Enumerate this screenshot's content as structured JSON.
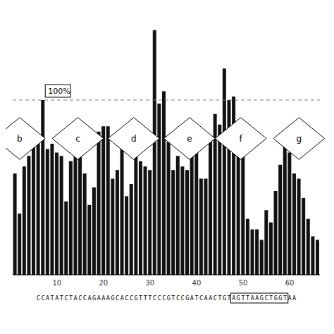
{
  "chart_data": {
    "type": "bar",
    "categories": [
      null,
      null,
      null,
      null,
      null,
      null,
      null,
      null,
      null,
      "10",
      null,
      null,
      null,
      null,
      null,
      null,
      null,
      null,
      null,
      "20",
      null,
      null,
      null,
      null,
      null,
      null,
      null,
      null,
      null,
      "30",
      null,
      null,
      null,
      null,
      null,
      null,
      null,
      null,
      null,
      "40",
      null,
      null,
      null,
      null,
      null,
      null,
      null,
      null,
      null,
      "50",
      null,
      null,
      null,
      null,
      null,
      null,
      null,
      null,
      null,
      "60",
      null,
      null,
      null,
      null,
      null,
      null
    ],
    "values": [
      58,
      35,
      62,
      68,
      75,
      80,
      100,
      72,
      75,
      70,
      68,
      42,
      65,
      72,
      70,
      58,
      40,
      50,
      82,
      85,
      85,
      55,
      60,
      72,
      45,
      52,
      72,
      65,
      62,
      60,
      140,
      98,
      105,
      76,
      60,
      68,
      62,
      60,
      68,
      80,
      55,
      55,
      78,
      92,
      86,
      118,
      100,
      102,
      82,
      68,
      32,
      26,
      26,
      20,
      37,
      30,
      48,
      63,
      83,
      70,
      58,
      55,
      44,
      32,
      22,
      20
    ],
    "color": "#111111",
    "ylim": [
      0,
      150
    ],
    "tick_labels": "x",
    "grid": false,
    "reference_line": {
      "y": 100,
      "label": "100%"
    },
    "annotations": [
      "b",
      "c",
      "d",
      "e",
      "f",
      "g"
    ],
    "sequence": [
      "CCATATCTACCAGAAAGCACCGTTTCCCGTCCGATCAACTGT",
      "AGTTAAGCTGGT",
      "AA"
    ]
  }
}
